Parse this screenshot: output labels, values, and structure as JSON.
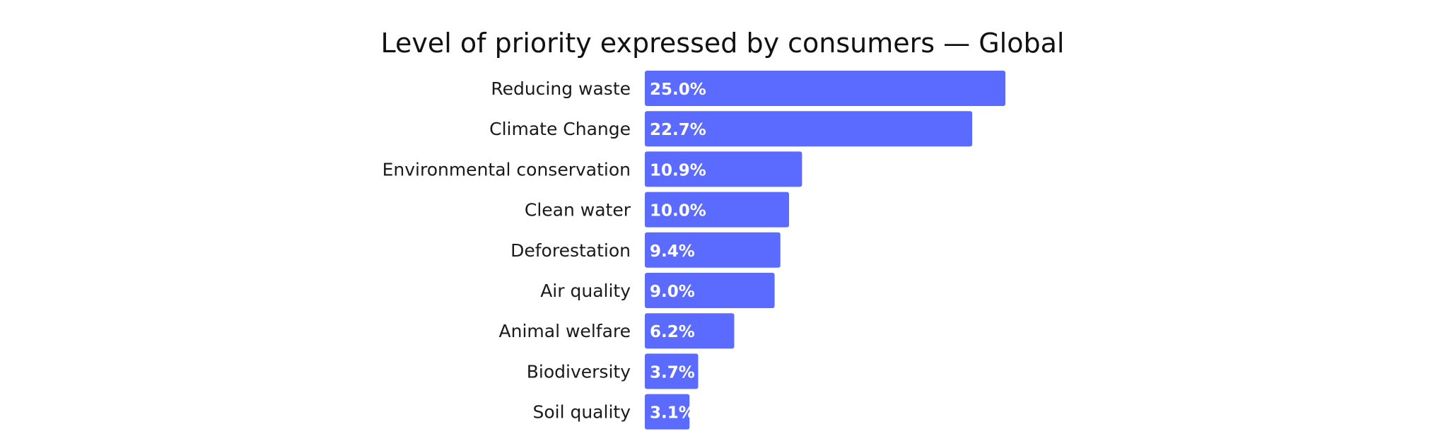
{
  "chart_data": {
    "type": "bar",
    "orientation": "horizontal",
    "title": "Level of priority expressed by consumers — Global",
    "categories": [
      "Reducing waste",
      "Climate Change",
      "Environmental conservation",
      "Clean water",
      "Deforestation",
      "Air quality",
      "Animal welfare",
      "Biodiversity",
      "Soil quality"
    ],
    "values": [
      25.0,
      22.7,
      10.9,
      10.0,
      9.4,
      9.0,
      6.2,
      3.7,
      3.1
    ],
    "value_labels": [
      "25.0%",
      "22.7%",
      "10.9%",
      "10.0%",
      "9.4%",
      "9.0%",
      "6.2%",
      "3.7%",
      "3.1%"
    ],
    "unit": "%",
    "xlabel": "",
    "ylabel": "",
    "xlim": [
      0,
      25
    ],
    "grid": false,
    "legend": "none",
    "bar_color": "#5B6BFF"
  }
}
